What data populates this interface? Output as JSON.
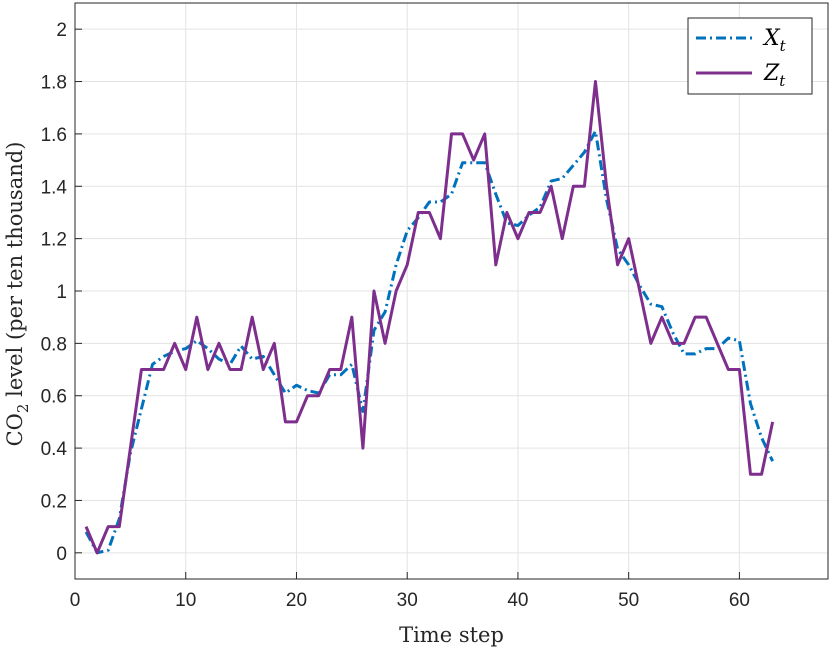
{
  "chart_data": {
    "type": "line",
    "xlabel": "Time step",
    "ylabel": {
      "prefix": "CO",
      "sub": "2",
      "suffix": " level (per ten thousand)"
    },
    "xlim": [
      0,
      68
    ],
    "ylim": [
      -0.1,
      2.1
    ],
    "xticks": [
      0,
      10,
      20,
      30,
      40,
      50,
      60
    ],
    "yticks": [
      0,
      0.2,
      0.4,
      0.6,
      0.8,
      1,
      1.2,
      1.4,
      1.6,
      1.8,
      2
    ],
    "grid": true,
    "legend_position": "top-right",
    "series": [
      {
        "name": "X",
        "subscript": "t",
        "color": "#0072BD",
        "style": "dash-dot",
        "x": [
          1,
          2,
          3,
          4,
          5,
          6,
          7,
          8,
          9,
          10,
          11,
          12,
          13,
          14,
          15,
          16,
          17,
          18,
          19,
          20,
          21,
          22,
          23,
          24,
          25,
          26,
          27,
          28,
          29,
          30,
          31,
          32,
          33,
          34,
          35,
          36,
          37,
          38,
          39,
          40,
          41,
          42,
          43,
          44,
          45,
          46,
          47,
          48,
          49,
          50,
          51,
          52,
          53,
          54,
          55,
          56,
          57,
          58,
          59,
          60,
          61,
          62,
          63
        ],
        "y": [
          0.08,
          0.0,
          0.01,
          0.13,
          0.38,
          0.55,
          0.72,
          0.75,
          0.77,
          0.78,
          0.81,
          0.78,
          0.74,
          0.72,
          0.79,
          0.74,
          0.75,
          0.68,
          0.61,
          0.64,
          0.62,
          0.61,
          0.68,
          0.68,
          0.72,
          0.54,
          0.85,
          0.92,
          1.1,
          1.23,
          1.28,
          1.34,
          1.34,
          1.37,
          1.49,
          1.49,
          1.49,
          1.37,
          1.26,
          1.25,
          1.29,
          1.32,
          1.42,
          1.43,
          1.48,
          1.53,
          1.61,
          1.35,
          1.16,
          1.1,
          1.02,
          0.95,
          0.94,
          0.84,
          0.76,
          0.76,
          0.78,
          0.78,
          0.82,
          0.81,
          0.57,
          0.44,
          0.35
        ]
      },
      {
        "name": "Z",
        "subscript": "t",
        "color": "#7E2F8E",
        "style": "solid",
        "x": [
          1,
          2,
          3,
          4,
          5,
          6,
          7,
          8,
          9,
          10,
          11,
          12,
          13,
          14,
          15,
          16,
          17,
          18,
          19,
          20,
          21,
          22,
          23,
          24,
          25,
          26,
          27,
          28,
          29,
          30,
          31,
          32,
          33,
          34,
          35,
          36,
          37,
          38,
          39,
          40,
          41,
          42,
          43,
          44,
          45,
          46,
          47,
          48,
          49,
          50,
          51,
          52,
          53,
          54,
          55,
          56,
          57,
          58,
          59,
          60,
          61,
          62,
          63
        ],
        "y": [
          0.1,
          0.0,
          0.1,
          0.1,
          0.4,
          0.7,
          0.7,
          0.7,
          0.8,
          0.7,
          0.9,
          0.7,
          0.8,
          0.7,
          0.7,
          0.9,
          0.7,
          0.8,
          0.5,
          0.5,
          0.6,
          0.6,
          0.7,
          0.7,
          0.9,
          0.4,
          1.0,
          0.8,
          1.0,
          1.1,
          1.3,
          1.3,
          1.2,
          1.6,
          1.6,
          1.5,
          1.6,
          1.1,
          1.3,
          1.2,
          1.3,
          1.3,
          1.4,
          1.2,
          1.4,
          1.4,
          1.8,
          1.4,
          1.1,
          1.2,
          1.0,
          0.8,
          0.9,
          0.8,
          0.8,
          0.9,
          0.9,
          0.8,
          0.7,
          0.7,
          0.3,
          0.3,
          0.5
        ]
      }
    ]
  }
}
